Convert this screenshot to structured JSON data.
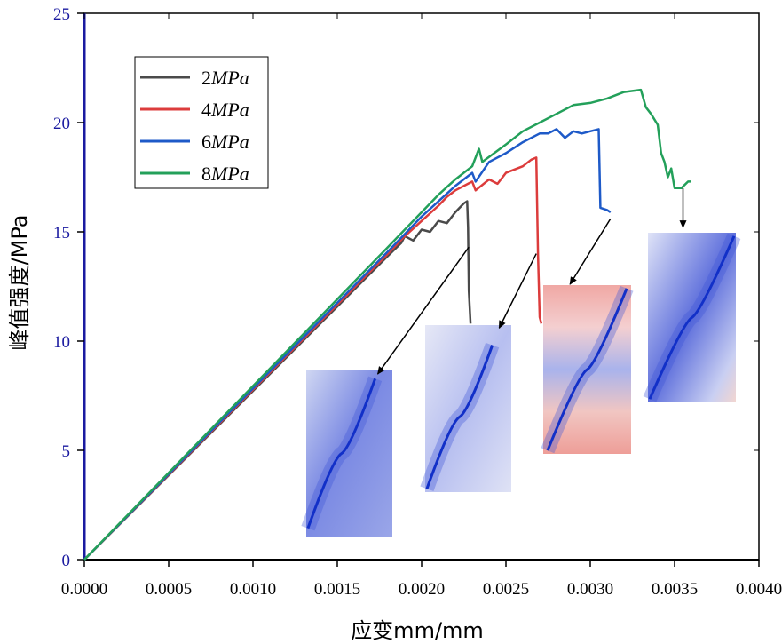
{
  "chart_data": {
    "type": "line",
    "title": "",
    "xlabel": "应变mm/mm",
    "ylabel": "峰值强度/MPa",
    "xlim": [
      0,
      0.004
    ],
    "ylim": [
      0,
      25
    ],
    "xticks": [
      0,
      0.0005,
      0.001,
      0.0015,
      0.002,
      0.0025,
      0.003,
      0.0035,
      0.004
    ],
    "xtick_labels": [
      "0.0000",
      "0.0005",
      "0.0010",
      "0.0015",
      "0.0020",
      "0.0025",
      "0.0030",
      "0.0035",
      "0.0040"
    ],
    "yticks": [
      0,
      5,
      10,
      15,
      20,
      25
    ],
    "ytick_labels": [
      "0",
      "5",
      "10",
      "15",
      "20",
      "25"
    ],
    "legend_position": "top-left",
    "series": [
      {
        "name": "2MPa",
        "num": "2",
        "unit": "MPa",
        "color": "#4a4a4a",
        "points": [
          [
            0,
            0
          ],
          [
            0.0018,
            13.9
          ],
          [
            0.00188,
            14.5
          ],
          [
            0.0019,
            14.8
          ],
          [
            0.00195,
            14.6
          ],
          [
            0.002,
            15.1
          ],
          [
            0.00205,
            15.0
          ],
          [
            0.0021,
            15.5
          ],
          [
            0.00215,
            15.4
          ],
          [
            0.0022,
            15.9
          ],
          [
            0.00225,
            16.3
          ],
          [
            0.00227,
            16.4
          ],
          [
            0.002275,
            15.2
          ],
          [
            0.00228,
            12.3
          ],
          [
            0.00229,
            10.8
          ]
        ]
      },
      {
        "name": "4MPa",
        "num": "4",
        "unit": "MPa",
        "color": "#dc3c3c",
        "points": [
          [
            0,
            0
          ],
          [
            0.0018,
            14.0
          ],
          [
            0.0019,
            14.8
          ],
          [
            0.002,
            15.5
          ],
          [
            0.0021,
            16.2
          ],
          [
            0.00215,
            16.6
          ],
          [
            0.0022,
            16.9
          ],
          [
            0.0023,
            17.3
          ],
          [
            0.00232,
            16.9
          ],
          [
            0.0024,
            17.4
          ],
          [
            0.00245,
            17.2
          ],
          [
            0.0025,
            17.7
          ],
          [
            0.0026,
            18.0
          ],
          [
            0.00265,
            18.3
          ],
          [
            0.00268,
            18.4
          ],
          [
            0.00269,
            14.0
          ],
          [
            0.0027,
            11.1
          ],
          [
            0.00271,
            10.8
          ]
        ]
      },
      {
        "name": "6MPa",
        "num": "6",
        "unit": "MPa",
        "color": "#1e5ac8",
        "points": [
          [
            0,
            0
          ],
          [
            0.0018,
            14.1
          ],
          [
            0.0019,
            14.9
          ],
          [
            0.002,
            15.7
          ],
          [
            0.0021,
            16.4
          ],
          [
            0.0022,
            17.1
          ],
          [
            0.0023,
            17.7
          ],
          [
            0.00232,
            17.3
          ],
          [
            0.0024,
            18.2
          ],
          [
            0.0025,
            18.6
          ],
          [
            0.0026,
            19.1
          ],
          [
            0.0027,
            19.5
          ],
          [
            0.00275,
            19.5
          ],
          [
            0.0028,
            19.7
          ],
          [
            0.00285,
            19.3
          ],
          [
            0.0029,
            19.6
          ],
          [
            0.00295,
            19.5
          ],
          [
            0.003,
            19.6
          ],
          [
            0.00305,
            19.7
          ],
          [
            0.00306,
            16.1
          ],
          [
            0.0031,
            16.0
          ],
          [
            0.00312,
            15.9
          ]
        ]
      },
      {
        "name": "8MPa",
        "num": "8",
        "unit": "MPa",
        "color": "#23a05a",
        "points": [
          [
            0,
            0
          ],
          [
            0.0018,
            14.3
          ],
          [
            0.0019,
            15.1
          ],
          [
            0.002,
            15.9
          ],
          [
            0.0021,
            16.7
          ],
          [
            0.0022,
            17.4
          ],
          [
            0.0023,
            18.0
          ],
          [
            0.00234,
            18.8
          ],
          [
            0.00236,
            18.2
          ],
          [
            0.0025,
            19.0
          ],
          [
            0.0026,
            19.6
          ],
          [
            0.0027,
            20.0
          ],
          [
            0.0028,
            20.4
          ],
          [
            0.0029,
            20.8
          ],
          [
            0.003,
            20.9
          ],
          [
            0.0031,
            21.1
          ],
          [
            0.0032,
            21.4
          ],
          [
            0.0033,
            21.5
          ],
          [
            0.00333,
            20.7
          ],
          [
            0.00336,
            20.4
          ],
          [
            0.0034,
            19.9
          ],
          [
            0.00342,
            18.6
          ],
          [
            0.00344,
            18.2
          ],
          [
            0.00346,
            17.5
          ],
          [
            0.00348,
            17.9
          ],
          [
            0.0035,
            17.0
          ],
          [
            0.00354,
            17.0
          ],
          [
            0.00358,
            17.3
          ],
          [
            0.0036,
            17.3
          ]
        ]
      }
    ],
    "annotations": [
      {
        "type": "arrow",
        "from": [
          0.00228,
          14.3
        ],
        "to": [
          0.00174,
          8.5
        ]
      },
      {
        "type": "arrow",
        "from": [
          0.00268,
          14.0
        ],
        "to": [
          0.00246,
          10.6
        ]
      },
      {
        "type": "arrow",
        "from": [
          0.00312,
          15.6
        ],
        "to": [
          0.00288,
          12.6
        ]
      },
      {
        "type": "arrow",
        "from": [
          0.00355,
          17.0
        ],
        "to": [
          0.00355,
          15.2
        ]
      }
    ],
    "inset_images": [
      {
        "name": "inset-2mpa",
        "theme": "blue",
        "crack_from": [
          0.8,
          0.05
        ],
        "crack_to": [
          0.02,
          0.95
        ]
      },
      {
        "name": "inset-4mpa",
        "theme": "blue-light",
        "crack_from": [
          0.78,
          0.12
        ],
        "crack_to": [
          0.02,
          0.98
        ]
      },
      {
        "name": "inset-6mpa",
        "theme": "red-blue",
        "crack_from": [
          0.95,
          0.02
        ],
        "crack_to": [
          0.05,
          0.98
        ]
      },
      {
        "name": "inset-8mpa",
        "theme": "blue-red",
        "crack_from": [
          0.98,
          0.02
        ],
        "crack_to": [
          0.02,
          0.98
        ]
      }
    ]
  }
}
